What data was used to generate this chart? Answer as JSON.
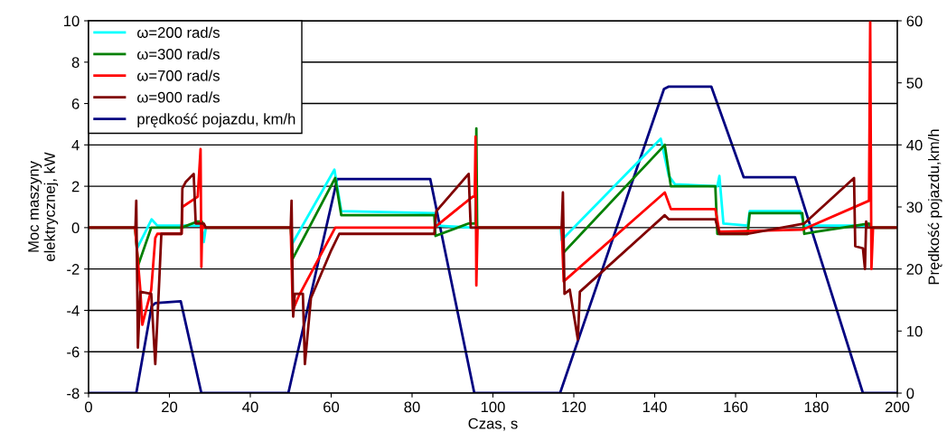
{
  "chart_data": {
    "type": "line",
    "xlabel": "Czas, s",
    "ylabel": "Moc maszyny\nelektrycznej, kW",
    "y2label": "Prędkość pojazdu,km/h",
    "xlim": [
      0,
      200
    ],
    "xticks": [
      0,
      20,
      40,
      60,
      80,
      100,
      120,
      140,
      160,
      180,
      200
    ],
    "ylim": [
      -8,
      10
    ],
    "yticks": [
      -8,
      -6,
      -4,
      -2,
      0,
      2,
      4,
      6,
      8,
      10
    ],
    "y2lim": [
      0,
      60
    ],
    "y2ticks": [
      0,
      10,
      20,
      30,
      40,
      50,
      60
    ],
    "grid": "y",
    "legend": "top left",
    "series": [
      {
        "name": "ω=200 rad/s",
        "color": "#00ffff",
        "x": [
          0,
          11.5,
          12,
          15.6,
          17,
          28,
          28.5,
          29,
          50,
          50.3,
          60.8,
          62.5,
          85.5,
          86,
          95,
          97,
          116.8,
          117,
          141.5,
          143.5,
          145,
          155.5,
          156,
          157,
          163,
          163.5,
          176,
          177,
          193,
          193.5,
          200
        ],
        "values": [
          0,
          0,
          -1.0,
          0.4,
          0.1,
          0.1,
          -0.7,
          0,
          0,
          -0.8,
          2.8,
          0.8,
          0.7,
          0.1,
          0,
          0,
          0,
          -0.6,
          4.3,
          2.5,
          2.1,
          2.0,
          2.5,
          0.2,
          0.1,
          0.8,
          0.8,
          0.1,
          0.1,
          0,
          0
        ]
      },
      {
        "name": "ω=300 rad/s",
        "color": "#008000",
        "x": [
          0,
          11.5,
          12.3,
          15.5,
          23,
          27,
          28,
          28.5,
          50,
          50.5,
          61,
          62.5,
          85.5,
          85.8,
          94,
          95.7,
          95.9,
          96.1,
          117,
          117.5,
          142.5,
          144,
          155,
          155.5,
          163,
          163.5,
          176.5,
          177,
          180,
          193,
          193.5,
          200
        ],
        "values": [
          0,
          0,
          -1.8,
          0,
          0,
          0.3,
          0.3,
          0,
          0,
          -1.5,
          2.4,
          0.6,
          0.6,
          -0.4,
          0.2,
          0.2,
          4.8,
          0,
          0,
          -1.2,
          4.0,
          2.0,
          2.0,
          -0.3,
          -0.3,
          0.7,
          0.7,
          -0.3,
          -0.2,
          0.2,
          0,
          0
        ]
      },
      {
        "name": "ω=700 rad/s",
        "color": "#ff0000",
        "x": [
          0,
          11.5,
          12.8,
          13.3,
          15.5,
          16.5,
          17,
          23,
          23.2,
          27,
          27.7,
          27.9,
          28.1,
          28.5,
          50,
          50.5,
          52,
          61,
          85.5,
          95,
          95.5,
          95.7,
          95.9,
          96.2,
          117,
          117.5,
          142.5,
          144,
          155,
          156,
          176.5,
          193,
          193.3,
          193.6,
          194,
          200
        ],
        "values": [
          0,
          0,
          -3.0,
          -4.7,
          -3.0,
          -0.5,
          -0.3,
          -0.3,
          1.0,
          1.5,
          3.8,
          -1.9,
          0.1,
          0,
          0,
          -4.0,
          -3.3,
          0,
          0,
          1.5,
          1.5,
          4.4,
          -2.8,
          0,
          0,
          -2.6,
          1.7,
          0.9,
          0.9,
          -0.2,
          -0.1,
          1.3,
          10,
          -2.0,
          0,
          0
        ]
      },
      {
        "name": "ω=900 rad/s",
        "color": "#800000",
        "x": [
          0,
          11.6,
          11.8,
          12.2,
          12.8,
          15.5,
          16.5,
          17.5,
          18,
          23,
          23.2,
          24,
          26,
          26.5,
          28.5,
          29,
          50,
          50.2,
          50.6,
          51,
          53,
          53.5,
          55,
          60,
          62,
          85.5,
          86,
          94,
          94.5,
          117,
          117.3,
          117.7,
          119,
          121,
          121.5,
          142.5,
          143.5,
          155,
          156,
          163,
          177,
          189.3,
          189.6,
          191.5,
          192,
          192.3,
          192.6,
          200
        ],
        "values": [
          0,
          0,
          1.3,
          -5.8,
          -3.1,
          -3.2,
          -6.6,
          -2.5,
          -0.3,
          -0.3,
          1.9,
          2.2,
          2.6,
          0.2,
          0.2,
          0,
          0,
          1.3,
          -4.3,
          -3.2,
          -3.2,
          -6.6,
          -3.4,
          -1.1,
          -0.3,
          -0.3,
          0.8,
          2.6,
          0,
          0,
          1.7,
          -3.2,
          -3.0,
          -5.4,
          -3.1,
          0.6,
          0.4,
          0.4,
          -0.3,
          -0.3,
          0.2,
          2.4,
          -0.9,
          -1.0,
          -2.0,
          0.3,
          0,
          0
        ]
      },
      {
        "name": "prędkość pojazdu, km/h",
        "color": "#000080",
        "axis": "y2",
        "x": [
          0,
          11.8,
          15.6,
          16.5,
          22.8,
          27.9,
          49.4,
          61.5,
          84.5,
          95.4,
          116.6,
          142.3,
          143.5,
          154,
          162,
          174.7,
          191.5,
          200
        ],
        "values": [
          0,
          0,
          14,
          14.5,
          14.8,
          0,
          0,
          34.5,
          34.5,
          0,
          0,
          49,
          49.4,
          49.4,
          34.8,
          34.8,
          0,
          0
        ]
      }
    ]
  }
}
